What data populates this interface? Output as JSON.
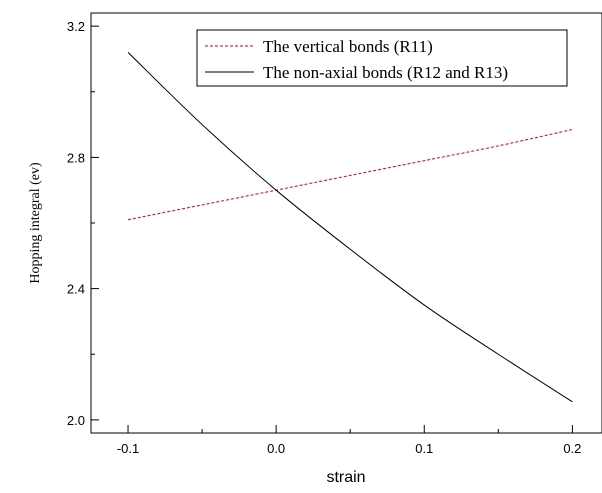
{
  "chart_data": {
    "type": "line",
    "title": "",
    "xlabel": "strain",
    "ylabel": "Hopping integral (ev)",
    "xlim": [
      -0.125,
      0.22
    ],
    "ylim": [
      1.96,
      3.24
    ],
    "xticks": [
      -0.1,
      0.0,
      0.1,
      0.2
    ],
    "xtick_labels": [
      "-0.1",
      "0.0",
      "0.1",
      "0.2"
    ],
    "yticks": [
      2.0,
      2.4,
      2.8,
      3.2
    ],
    "ytick_labels": [
      "2.0",
      "2.4",
      "2.8",
      "3.2"
    ],
    "grid": false,
    "legend_position": "top-right",
    "series": [
      {
        "name": "The vertical bonds (R11)",
        "color": "#e00000",
        "dash": "dashed",
        "x": [
          -0.1,
          -0.05,
          0.0,
          0.05,
          0.1,
          0.15,
          0.2
        ],
        "y": [
          2.61,
          2.655,
          2.7,
          2.745,
          2.79,
          2.835,
          2.885
        ]
      },
      {
        "name": "The non-axial bonds (R12 and R13)",
        "color": "#000000",
        "dash": "solid",
        "x": [
          -0.1,
          -0.05,
          0.0,
          0.05,
          0.1,
          0.15,
          0.2
        ],
        "y": [
          3.12,
          2.9,
          2.7,
          2.52,
          2.35,
          2.2,
          2.055
        ]
      }
    ]
  }
}
